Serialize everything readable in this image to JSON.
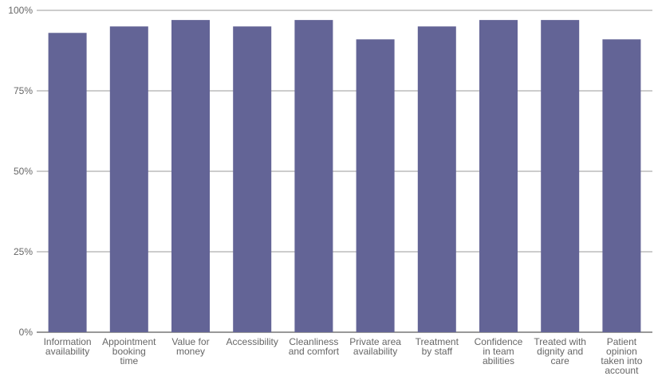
{
  "chart_data": {
    "type": "bar",
    "categories": [
      "Information availability",
      "Appointment booking time",
      "Value for money",
      "Accessibility",
      "Cleanliness and comfort",
      "Private area availability",
      "Treatment by staff",
      "Confidence in team abilities",
      "Treated with dignity and care",
      "Patient opinion taken into account"
    ],
    "values": [
      93,
      95,
      97,
      95,
      97,
      91,
      95,
      97,
      97,
      91
    ],
    "color": "#636496",
    "ylim": [
      0,
      100
    ],
    "yticks": [
      {
        "value": 0,
        "label": "0%"
      },
      {
        "value": 25,
        "label": "25%"
      },
      {
        "value": 50,
        "label": "50%"
      },
      {
        "value": 75,
        "label": "75%"
      },
      {
        "value": 100,
        "label": "100%"
      }
    ],
    "grid": true
  }
}
